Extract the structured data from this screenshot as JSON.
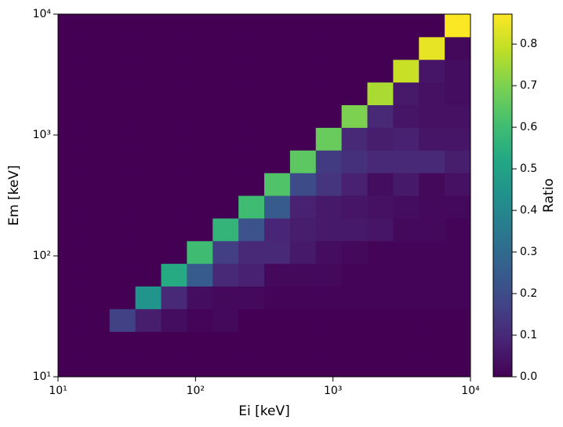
{
  "chart_data": {
    "type": "heatmap",
    "xlabel": "Ei [keV]",
    "ylabel": "Em [keV]",
    "colorbar_label": "Ratio",
    "log_x": true,
    "log_y": true,
    "colormap": "viridis",
    "xbins": [
      10,
      15.4,
      23.71,
      36.52,
      56.23,
      86.6,
      133.35,
      205.35,
      316.23,
      486.97,
      749.89,
      1154.78,
      1778.28,
      2738.42,
      4216.97,
      6493.82,
      10000
    ],
    "ybins": [
      10,
      15.4,
      23.71,
      36.52,
      56.23,
      86.6,
      133.35,
      205.35,
      316.23,
      486.97,
      749.89,
      1154.78,
      1778.28,
      2738.42,
      4216.97,
      6493.82,
      10000
    ],
    "z": [
      [
        0,
        0,
        0,
        0,
        0,
        0,
        0,
        0,
        0,
        0,
        0,
        0,
        0,
        0,
        0,
        0
      ],
      [
        0,
        0,
        0,
        0,
        0,
        0,
        0,
        0,
        0,
        0,
        0,
        0,
        0,
        0,
        0,
        0
      ],
      [
        0,
        0,
        0.17,
        0.07,
        0.03,
        0.01,
        0.02,
        0,
        0,
        0,
        0,
        0,
        0,
        0,
        0,
        0
      ],
      [
        0,
        0,
        0,
        0.45,
        0.1,
        0.03,
        0.02,
        0.02,
        0.01,
        0.01,
        0.01,
        0.01,
        0.01,
        0.01,
        0.01,
        0.01
      ],
      [
        0,
        0,
        0,
        0,
        0.53,
        0.25,
        0.1,
        0.08,
        0.02,
        0.02,
        0.02,
        0.01,
        0.01,
        0.01,
        0.01,
        0.01
      ],
      [
        0,
        0,
        0,
        0,
        0,
        0.6,
        0.16,
        0.1,
        0.1,
        0.06,
        0.03,
        0.02,
        0.01,
        0.01,
        0.01,
        0.01
      ],
      [
        0,
        0,
        0,
        0,
        0,
        0,
        0.57,
        0.22,
        0.09,
        0.07,
        0.06,
        0.06,
        0.05,
        0.02,
        0.02,
        0.01
      ],
      [
        0,
        0,
        0,
        0,
        0,
        0,
        0,
        0.6,
        0.25,
        0.08,
        0.06,
        0.05,
        0.04,
        0.03,
        0.02,
        0.02
      ],
      [
        0,
        0,
        0,
        0,
        0,
        0,
        0,
        0,
        0.63,
        0.2,
        0.13,
        0.08,
        0.03,
        0.06,
        0.02,
        0.04
      ],
      [
        0,
        0,
        0,
        0,
        0,
        0,
        0,
        0,
        0,
        0.65,
        0.15,
        0.12,
        0.1,
        0.1,
        0.1,
        0.07
      ],
      [
        0,
        0,
        0,
        0,
        0,
        0,
        0,
        0,
        0,
        0,
        0.67,
        0.1,
        0.07,
        0.08,
        0.05,
        0.05
      ],
      [
        0,
        0,
        0,
        0,
        0,
        0,
        0,
        0,
        0,
        0,
        0,
        0.7,
        0.1,
        0.05,
        0.04,
        0.04
      ],
      [
        0,
        0,
        0,
        0,
        0,
        0,
        0,
        0,
        0,
        0,
        0,
        0,
        0.76,
        0.06,
        0.04,
        0.03
      ],
      [
        0,
        0,
        0,
        0,
        0,
        0,
        0,
        0,
        0,
        0,
        0,
        0,
        0,
        0.8,
        0.05,
        0.03
      ],
      [
        0,
        0,
        0,
        0,
        0,
        0,
        0,
        0,
        0,
        0,
        0,
        0,
        0,
        0,
        0.84,
        0.02
      ],
      [
        0,
        0,
        0,
        0,
        0,
        0,
        0,
        0,
        0,
        0,
        0,
        0,
        0,
        0,
        0,
        0.87
      ]
    ],
    "xlim": [
      10,
      10000
    ],
    "ylim": [
      10,
      10000
    ],
    "xticks": [
      {
        "value": 10,
        "label": "10¹"
      },
      {
        "value": 100,
        "label": "10²"
      },
      {
        "value": 1000,
        "label": "10³"
      },
      {
        "value": 10000,
        "label": "10⁴"
      }
    ],
    "yticks": [
      {
        "value": 10,
        "label": "10¹"
      },
      {
        "value": 100,
        "label": "10²"
      },
      {
        "value": 1000,
        "label": "10³"
      },
      {
        "value": 10000,
        "label": "10⁴"
      }
    ],
    "clim": [
      0,
      0.872
    ],
    "cticks": [
      {
        "value": 0,
        "label": "0.0"
      },
      0.1,
      0.2,
      0.3,
      0.4,
      0.5,
      0.6,
      0.7,
      0.8
    ]
  }
}
